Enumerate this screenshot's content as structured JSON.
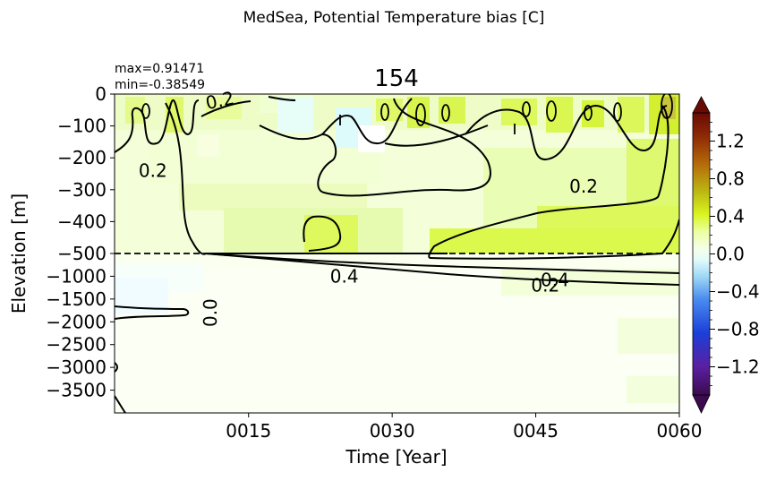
{
  "figure": {
    "suptitle": "MedSea, Potential Temperature bias [C]",
    "panel_title": "154",
    "max_label": "max=0.91471",
    "min_label": "min=-0.38549"
  },
  "chart_data": {
    "type": "heatmap",
    "xlabel": "Time [Year]",
    "ylabel": "Elevation [m]",
    "x_ticks": [
      "0015",
      "0030",
      "0045",
      "0060"
    ],
    "x_tick_values": [
      15,
      30,
      45,
      60
    ],
    "xlim": [
      1,
      60
    ],
    "y_ticks_upper": [
      "0",
      "−100",
      "−200",
      "−300",
      "−400",
      "−500"
    ],
    "y_tick_values_upper": [
      0,
      -100,
      -200,
      -300,
      -400,
      -500
    ],
    "y_ticks_lower": [
      "−1000",
      "−1500",
      "−2000",
      "−2500",
      "−3000",
      "−3500"
    ],
    "y_tick_values_lower": [
      -1000,
      -1500,
      -2000,
      -2500,
      -3000,
      -3500
    ],
    "ylim_upper": [
      -500,
      0
    ],
    "ylim_lower": [
      -4000,
      -500
    ],
    "split_depth": -500,
    "colorbar": {
      "ticks": [
        "1.2",
        "0.8",
        "0.4",
        "0.0",
        "−0.4",
        "−0.8",
        "−1.2"
      ],
      "tick_values": [
        1.2,
        0.8,
        0.4,
        0.0,
        -0.4,
        -0.8,
        -1.2
      ],
      "range": [
        -1.5,
        1.5
      ],
      "extend": "both"
    },
    "contour_labels": [
      {
        "text": "0.2",
        "x": 12,
        "z": -20
      },
      {
        "text": "0.2",
        "x": 5,
        "z": -240
      },
      {
        "text": "0.2",
        "x": 50,
        "z": -290
      },
      {
        "text": "0.4",
        "x": 25,
        "z": -1000
      },
      {
        "text": "0.4",
        "x": 47,
        "z": -1080
      },
      {
        "text": "0.2",
        "x": 46,
        "z": -1200
      },
      {
        "text": "0.0",
        "x": 11,
        "z": -1800
      }
    ]
  }
}
